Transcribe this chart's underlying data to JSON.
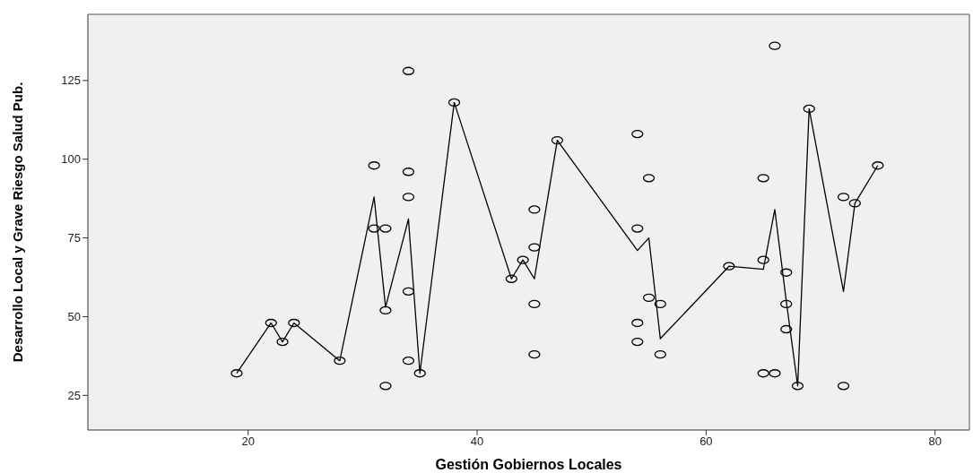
{
  "chart_data": {
    "type": "scatter",
    "xlabel": "Gestión Gobiernos Locales",
    "ylabel": "Desarrollo Local  y Grave Riesgo Salud Pub.",
    "xlim": [
      6,
      83
    ],
    "ylim": [
      14,
      146
    ],
    "xticks": [
      20,
      40,
      60,
      80
    ],
    "yticks": [
      25,
      50,
      75,
      100,
      125
    ],
    "series": [
      {
        "type": "line",
        "color": "#000000",
        "marker": "none",
        "x": [
          19,
          22,
          23,
          24,
          28,
          31,
          32,
          34,
          35,
          38,
          43,
          44,
          45,
          47,
          54,
          55,
          56,
          62,
          65,
          66,
          67,
          68,
          69,
          72,
          73,
          75
        ],
        "values": [
          32,
          48,
          42,
          48,
          36,
          88,
          53,
          81,
          32,
          118,
          62,
          68,
          62,
          106,
          71,
          75,
          43,
          66,
          65,
          84,
          55,
          28,
          116,
          58,
          86,
          98
        ]
      },
      {
        "color": "#000000",
        "marker": "circle",
        "x": [
          19,
          22,
          23,
          24,
          28,
          31,
          31,
          32,
          32,
          32,
          34,
          34,
          34,
          34,
          34,
          35,
          38,
          43,
          44,
          45,
          45,
          45,
          45,
          47,
          54,
          54,
          54,
          54,
          55,
          55,
          56,
          56,
          62,
          65,
          65,
          65,
          66,
          66,
          67,
          67,
          67,
          68,
          69,
          72,
          72,
          73,
          75
        ],
        "values": [
          32,
          48,
          42,
          48,
          36,
          98,
          78,
          78,
          52,
          28,
          128,
          96,
          88,
          58,
          36,
          32,
          118,
          62,
          68,
          84,
          72,
          54,
          38,
          106,
          108,
          78,
          48,
          42,
          94,
          56,
          54,
          38,
          66,
          94,
          68,
          32,
          136,
          32,
          64,
          54,
          46,
          28,
          116,
          88,
          28,
          86,
          98
        ]
      }
    ]
  }
}
